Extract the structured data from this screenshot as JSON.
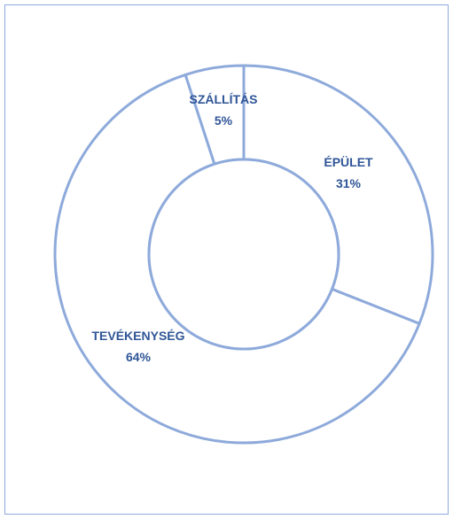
{
  "colors": {
    "border": "#8eaadb",
    "ring_fill": "#ffffff",
    "label": "#2f5597"
  },
  "chart_data": {
    "type": "pie",
    "variant": "doughnut",
    "slices": [
      {
        "category": "ÉPÜLET",
        "value": 31,
        "label": "31%"
      },
      {
        "category": "TEVÉKENYSÉG",
        "value": 64,
        "label": "64%"
      },
      {
        "category": "SZÁLLÍTÁS",
        "value": 5,
        "label": "5%"
      }
    ],
    "start_angle_deg": 0,
    "direction": "clockwise",
    "legend": "none"
  }
}
